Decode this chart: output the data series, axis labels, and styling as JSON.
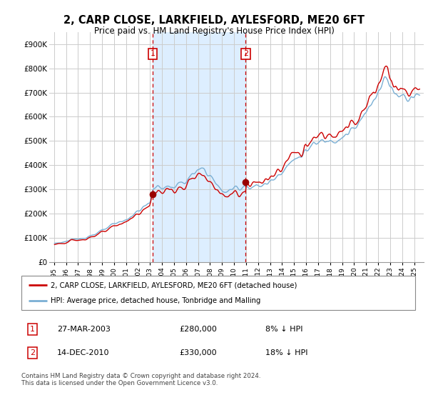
{
  "title": "2, CARP CLOSE, LARKFIELD, AYLESFORD, ME20 6FT",
  "subtitle": "Price paid vs. HM Land Registry's House Price Index (HPI)",
  "legend_line1": "2, CARP CLOSE, LARKFIELD, AYLESFORD, ME20 6FT (detached house)",
  "legend_line2": "HPI: Average price, detached house, Tonbridge and Malling",
  "table_row1": [
    "1",
    "27-MAR-2003",
    "£280,000",
    "8% ↓ HPI"
  ],
  "table_row2": [
    "2",
    "14-DEC-2010",
    "£330,000",
    "18% ↓ HPI"
  ],
  "footnote": "Contains HM Land Registry data © Crown copyright and database right 2024.\nThis data is licensed under the Open Government Licence v3.0.",
  "sale1_x": 2003.23,
  "sale1_y": 280000,
  "sale2_x": 2010.96,
  "sale2_y": 330000,
  "vline1_x": 2003.23,
  "vline2_x": 2010.96,
  "shaded_xmin": 2003.23,
  "shaded_xmax": 2010.96,
  "ylim": [
    0,
    950000
  ],
  "yticks": [
    0,
    100000,
    200000,
    300000,
    400000,
    500000,
    600000,
    700000,
    800000,
    900000
  ],
  "ytick_labels": [
    "£0",
    "£100K",
    "£200K",
    "£300K",
    "£400K",
    "£500K",
    "£600K",
    "£700K",
    "£800K",
    "£900K"
  ],
  "bg_color": "#ffffff",
  "plot_bg_color": "#ffffff",
  "grid_color": "#cccccc",
  "hpi_color": "#7aafd4",
  "sale_line_color": "#cc0000",
  "vline_color": "#cc0000",
  "shade_color": "#ddeeff",
  "sale_dot_color": "#990000",
  "xtick_years": [
    1995,
    1996,
    1997,
    1998,
    1999,
    2000,
    2001,
    2002,
    2003,
    2004,
    2005,
    2006,
    2007,
    2008,
    2009,
    2010,
    2011,
    2012,
    2013,
    2014,
    2015,
    2016,
    2017,
    2018,
    2019,
    2020,
    2021,
    2022,
    2023,
    2024,
    2025
  ]
}
